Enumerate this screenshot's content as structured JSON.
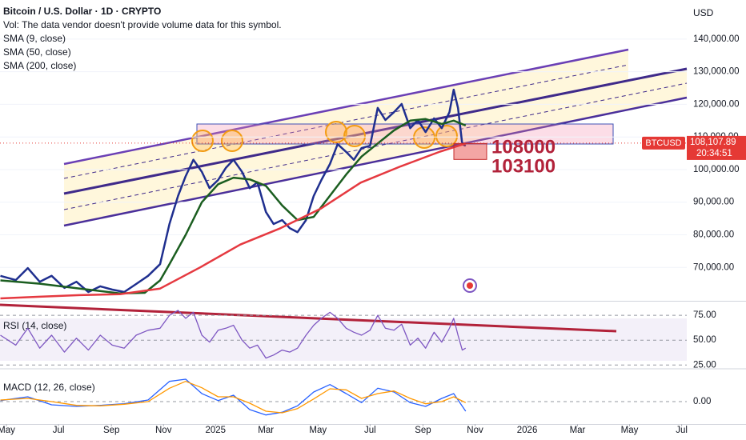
{
  "chart_data": [
    {
      "type": "line",
      "title": "Bitcoin / U.S. Dollar · 1D · CRYPTO",
      "subtitle": "Vol: The data vendor doesn't provide volume data for this symbol.",
      "currency": "USD",
      "xlim": [
        -7.5,
        797
      ],
      "xticks": [
        {
          "value": 0,
          "label": "May"
        },
        {
          "value": 61,
          "label": "Jul"
        },
        {
          "value": 123,
          "label": "Sep"
        },
        {
          "value": 184,
          "label": "Nov"
        },
        {
          "value": 245,
          "label": "2025"
        },
        {
          "value": 304,
          "label": "Mar"
        },
        {
          "value": 365,
          "label": "May"
        },
        {
          "value": 426,
          "label": "Jul"
        },
        {
          "value": 488,
          "label": "Sep"
        },
        {
          "value": 549,
          "label": "Nov"
        },
        {
          "value": 610,
          "label": "2026"
        },
        {
          "value": 669,
          "label": "Mar"
        },
        {
          "value": 730,
          "label": "May"
        },
        {
          "value": 791,
          "label": "Jul"
        }
      ],
      "ylim": [
        60000,
        152000
      ],
      "yticks": [
        {
          "value": 70000,
          "label": "70,000.00"
        },
        {
          "value": 80000,
          "label": "80,000.00"
        },
        {
          "value": 90000,
          "label": "90,000.00"
        },
        {
          "value": 100000,
          "label": "100,000.00"
        },
        {
          "value": 110000,
          "label": "110,000.00"
        },
        {
          "value": 120000,
          "label": "120,000.00"
        },
        {
          "value": 130000,
          "label": "130,000.00"
        },
        {
          "value": 140000,
          "label": "140,000.00"
        }
      ],
      "series": [
        {
          "name": "SMA (9, close)",
          "color": "#1f2f8f",
          "x": [
            -7,
            11,
            25,
            39,
            53,
            68,
            82,
            96,
            110,
            124,
            138,
            152,
            166,
            180,
            191,
            201,
            210,
            219,
            229,
            238,
            248,
            257,
            266,
            276,
            285,
            294,
            304,
            313,
            323,
            332,
            341,
            351,
            360,
            369,
            379,
            388,
            398,
            407,
            416,
            426,
            435,
            444,
            454,
            463,
            473,
            482,
            491,
            501,
            510,
            519,
            524,
            529,
            534,
            538
          ],
          "values": [
            67400,
            66100,
            69800,
            65600,
            67400,
            63700,
            65600,
            62450,
            64200,
            63200,
            62450,
            64900,
            67400,
            71000,
            83300,
            91900,
            98000,
            103000,
            99300,
            94300,
            96800,
            100500,
            103000,
            99300,
            94300,
            96100,
            87000,
            83300,
            84500,
            82000,
            80800,
            84500,
            91900,
            96800,
            101700,
            107800,
            105400,
            103000,
            106600,
            107300,
            118900,
            115200,
            117600,
            120100,
            112700,
            115200,
            111500,
            115700,
            112700,
            117600,
            124500,
            118900,
            107800,
            107300
          ]
        },
        {
          "name": "SMA (50, close)",
          "color": "#1b5e20",
          "x": [
            -7,
            39,
            86,
            133,
            162,
            180,
            191,
            210,
            229,
            248,
            266,
            285,
            304,
            323,
            341,
            360,
            379,
            398,
            416,
            435,
            454,
            473,
            491,
            510,
            524,
            538
          ],
          "values": [
            66000,
            65000,
            63500,
            62000,
            62200,
            66000,
            71000,
            80000,
            90000,
            95500,
            97500,
            97000,
            95000,
            89000,
            84500,
            85500,
            92000,
            98500,
            104000,
            108000,
            112000,
            115000,
            115500,
            114000,
            115000,
            113500
          ]
        },
        {
          "name": "SMA (200, close)",
          "color": "#e53940",
          "x": [
            -7,
            39,
            86,
            133,
            180,
            227,
            274,
            321,
            368,
            415,
            462,
            508,
            538
          ],
          "values": [
            60500,
            61000,
            61500,
            61800,
            63500,
            70000,
            77000,
            82000,
            88000,
            96000,
            101000,
            105500,
            108000
          ]
        }
      ],
      "symbol": "BTCUSD",
      "last_price": {
        "value": 108107.89,
        "label": "108,107.89"
      },
      "countdown": "20:34:51",
      "levels": [
        108000,
        103100
      ]
    },
    {
      "type": "line",
      "title": "RSI (14, close)",
      "xlim": [
        -7.5,
        797
      ],
      "ylim": [
        22,
        88
      ],
      "yticks": [
        {
          "value": 25,
          "label": "25.00"
        },
        {
          "value": 50,
          "label": "50.00"
        },
        {
          "value": 75,
          "label": "75.00"
        }
      ],
      "series": [
        {
          "color": "#7e57c2",
          "x": [
            -7,
            11,
            25,
            39,
            53,
            68,
            82,
            96,
            110,
            124,
            138,
            152,
            166,
            180,
            191,
            201,
            210,
            219,
            229,
            238,
            248,
            257,
            266,
            276,
            285,
            294,
            304,
            313,
            323,
            332,
            341,
            351,
            360,
            369,
            379,
            388,
            398,
            407,
            416,
            426,
            435,
            444,
            454,
            463,
            473,
            482,
            491,
            501,
            510,
            519,
            524,
            529,
            534,
            538
          ],
          "values": [
            55,
            45,
            62,
            42,
            55,
            38,
            52,
            40,
            55,
            45,
            42,
            55,
            60,
            62,
            75,
            80,
            72,
            78,
            55,
            48,
            60,
            62,
            65,
            50,
            42,
            45,
            32,
            35,
            40,
            38,
            42,
            55,
            65,
            72,
            78,
            72,
            62,
            58,
            55,
            60,
            75,
            62,
            60,
            66,
            45,
            52,
            42,
            58,
            48,
            62,
            72,
            55,
            40,
            42
          ]
        }
      ]
    },
    {
      "type": "line",
      "title": "MACD (12, 26, close)",
      "xlim": [
        -7.5,
        797
      ],
      "ylim": [
        -4200,
        6000
      ],
      "yticks": [
        {
          "value": 0,
          "label": "0.00"
        }
      ],
      "series": [
        {
          "color": "#2962ff",
          "x": [
            -7,
            25,
            53,
            82,
            110,
            138,
            166,
            191,
            210,
            229,
            248,
            266,
            285,
            304,
            323,
            341,
            360,
            379,
            398,
            416,
            435,
            454,
            473,
            491,
            510,
            524,
            538
          ],
          "values": [
            200,
            900,
            -600,
            -900,
            -700,
            -400,
            300,
            3800,
            4200,
            1500,
            200,
            1200,
            -1500,
            -2500,
            -2000,
            -800,
            1800,
            3200,
            1500,
            -200,
            2500,
            1800,
            -200,
            -900,
            600,
            1500,
            -1800
          ]
        },
        {
          "color": "#ff9800",
          "x": [
            -7,
            25,
            53,
            82,
            110,
            138,
            166,
            191,
            210,
            229,
            248,
            266,
            285,
            304,
            323,
            341,
            360,
            379,
            398,
            416,
            435,
            454,
            473,
            491,
            510,
            524,
            538
          ],
          "values": [
            300,
            600,
            0,
            -700,
            -800,
            -500,
            0,
            2500,
            3800,
            2600,
            900,
            900,
            -300,
            -1800,
            -2100,
            -1300,
            500,
            2400,
            2200,
            600,
            1500,
            2000,
            600,
            -400,
            0,
            900,
            -200
          ]
        }
      ]
    }
  ]
}
